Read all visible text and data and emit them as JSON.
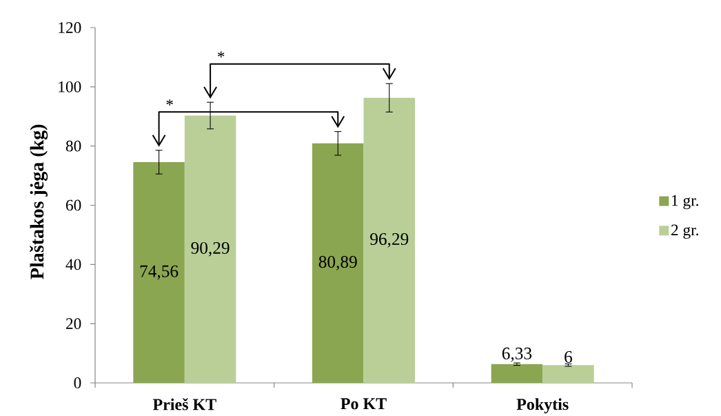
{
  "chart_data": {
    "type": "bar",
    "ylabel": "Plaštakos jėga (kg)",
    "categories": [
      "Prieš KT",
      "Po KT",
      "Pokytis"
    ],
    "series": [
      {
        "name": "1 gr.",
        "color": "#8ba650",
        "values": [
          74.56,
          80.89,
          6.33
        ],
        "errors": [
          4,
          4,
          0.4
        ],
        "value_labels": [
          "74,56",
          "80,89",
          "6,33"
        ]
      },
      {
        "name": "2 gr.",
        "color": "#b9cf97",
        "values": [
          90.29,
          96.29,
          6
        ],
        "errors": [
          4.5,
          4.8,
          0.4
        ],
        "value_labels": [
          "90,29",
          "96,29",
          "6"
        ]
      }
    ],
    "ylim": [
      0,
      120
    ],
    "yticks": [
      0,
      20,
      40,
      60,
      80,
      100,
      120
    ],
    "grid": false,
    "legend": "right",
    "annotations": [
      "*",
      "*"
    ]
  }
}
